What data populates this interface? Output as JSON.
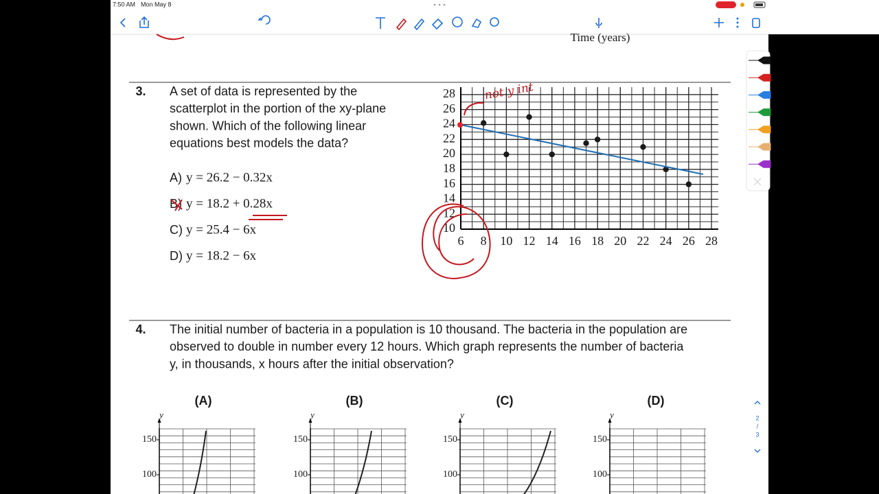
{
  "status_bar": {
    "time": "7:50 AM",
    "date": "Mon May 8"
  },
  "page_indicator": {
    "current": "2",
    "separator": "/",
    "total": "3"
  },
  "worksheet": {
    "prev_axis_label": "Time (years)",
    "question3": {
      "number": "3.",
      "text_lines": [
        "A set of data is represented by the",
        "scatterplot in the portion of the xy-plane",
        "shown. Which of the following linear",
        "equations best models the data?"
      ],
      "choices": [
        {
          "letter": "A)",
          "equation": "y = 26.2 − 0.32x"
        },
        {
          "letter": "B)",
          "equation": "y = 18.2 + 0.28x"
        },
        {
          "letter": "C)",
          "equation": "y = 25.4 − 6x"
        },
        {
          "letter": "D)",
          "equation": "y = 18.2 − 6x"
        }
      ],
      "annotation": "not y int",
      "plot": {
        "type": "scatter",
        "x": [
          8,
          10,
          12,
          14,
          17,
          18,
          22,
          24,
          26
        ],
        "y": [
          24.2,
          20,
          25,
          20,
          21.5,
          22,
          21,
          18,
          16
        ],
        "color": "#1a1a1a",
        "xlim": [
          6,
          28.6
        ],
        "ylim": [
          10,
          29
        ],
        "xticks": [
          6,
          8,
          10,
          12,
          14,
          16,
          18,
          20,
          22,
          24,
          26,
          28
        ],
        "yticks": [
          10,
          12,
          14,
          16,
          18,
          20,
          22,
          24,
          26,
          28
        ],
        "grid": true
      }
    },
    "question4": {
      "number": "4.",
      "text_lines": [
        "The initial number of bacteria in a population is 10 thousand. The bacteria in the population are",
        "observed to double in number every 12 hours. Which graph represents the number of bacteria",
        "y, in thousands, x hours after the initial observation?"
      ],
      "graph_labels": [
        "(A)",
        "(B)",
        "(C)",
        "(D)"
      ],
      "axis_label": "y",
      "yticks": [
        150,
        100
      ]
    }
  }
}
